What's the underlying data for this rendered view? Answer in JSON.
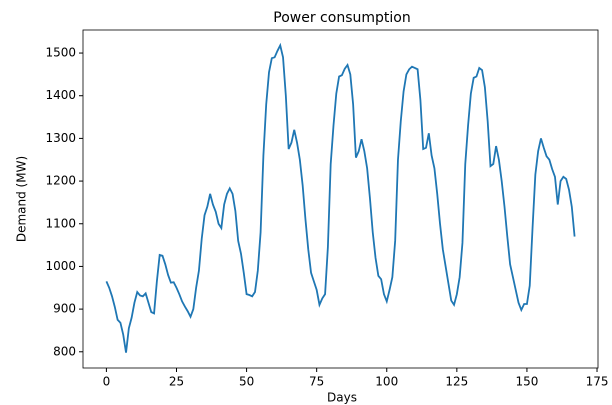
{
  "chart_data": {
    "type": "line",
    "title": "Power consumption",
    "xlabel": "Days",
    "ylabel": "Demand (MW)",
    "x": [
      0,
      1,
      2,
      3,
      4,
      5,
      6,
      7,
      8,
      9,
      10,
      11,
      12,
      13,
      14,
      15,
      16,
      17,
      18,
      19,
      20,
      21,
      22,
      23,
      24,
      25,
      26,
      27,
      28,
      29,
      30,
      31,
      32,
      33,
      34,
      35,
      36,
      37,
      38,
      39,
      40,
      41,
      42,
      43,
      44,
      45,
      46,
      47,
      48,
      49,
      50,
      51,
      52,
      53,
      54,
      55,
      56,
      57,
      58,
      59,
      60,
      61,
      62,
      63,
      64,
      65,
      66,
      67,
      68,
      69,
      70,
      71,
      72,
      73,
      74,
      75,
      76,
      77,
      78,
      79,
      80,
      81,
      82,
      83,
      84,
      85,
      86,
      87,
      88,
      89,
      90,
      91,
      92,
      93,
      94,
      95,
      96,
      97,
      98,
      99,
      100,
      101,
      102,
      103,
      104,
      105,
      106,
      107,
      108,
      109,
      110,
      111,
      112,
      113,
      114,
      115,
      116,
      117,
      118,
      119,
      120,
      121,
      122,
      123,
      124,
      125,
      126,
      127,
      128,
      129,
      130,
      131,
      132,
      133,
      134,
      135,
      136,
      137,
      138,
      139,
      140,
      141,
      142,
      143,
      144,
      145,
      146,
      147,
      148,
      149,
      150,
      151,
      152,
      153,
      154,
      155,
      156,
      157,
      158,
      159,
      160,
      161,
      162,
      163,
      164,
      165,
      166,
      167
    ],
    "values": [
      965,
      950,
      930,
      905,
      875,
      868,
      840,
      798,
      855,
      880,
      915,
      940,
      932,
      930,
      937,
      915,
      893,
      890,
      965,
      1027,
      1025,
      1005,
      980,
      962,
      963,
      950,
      935,
      918,
      906,
      895,
      882,
      900,
      950,
      990,
      1065,
      1120,
      1140,
      1170,
      1145,
      1128,
      1100,
      1090,
      1145,
      1170,
      1183,
      1170,
      1130,
      1060,
      1030,
      985,
      935,
      933,
      930,
      940,
      990,
      1080,
      1260,
      1380,
      1455,
      1488,
      1490,
      1505,
      1518,
      1490,
      1400,
      1275,
      1290,
      1320,
      1290,
      1250,
      1190,
      1110,
      1040,
      985,
      965,
      945,
      910,
      925,
      935,
      1045,
      1240,
      1330,
      1405,
      1445,
      1448,
      1463,
      1472,
      1450,
      1380,
      1255,
      1270,
      1298,
      1270,
      1230,
      1160,
      1080,
      1020,
      978,
      970,
      935,
      918,
      945,
      975,
      1060,
      1250,
      1340,
      1410,
      1450,
      1462,
      1468,
      1465,
      1462,
      1390,
      1275,
      1278,
      1312,
      1260,
      1230,
      1170,
      1100,
      1040,
      1000,
      960,
      920,
      910,
      935,
      975,
      1055,
      1240,
      1330,
      1405,
      1442,
      1445,
      1465,
      1460,
      1420,
      1340,
      1235,
      1240,
      1282,
      1250,
      1200,
      1140,
      1070,
      1005,
      975,
      945,
      915,
      898,
      912,
      912,
      955,
      1090,
      1215,
      1270,
      1300,
      1278,
      1258,
      1250,
      1228,
      1210,
      1145,
      1200,
      1210,
      1205,
      1180,
      1140,
      1070
    ],
    "color": "#1f77b4",
    "xlim": [
      -8.35,
      175.35
    ],
    "xticks": [
      0,
      25,
      50,
      75,
      100,
      125,
      150,
      175
    ],
    "ylim": [
      762,
      1554
    ],
    "yticks": [
      800,
      900,
      1000,
      1100,
      1200,
      1300,
      1400,
      1500
    ],
    "grid": false
  }
}
